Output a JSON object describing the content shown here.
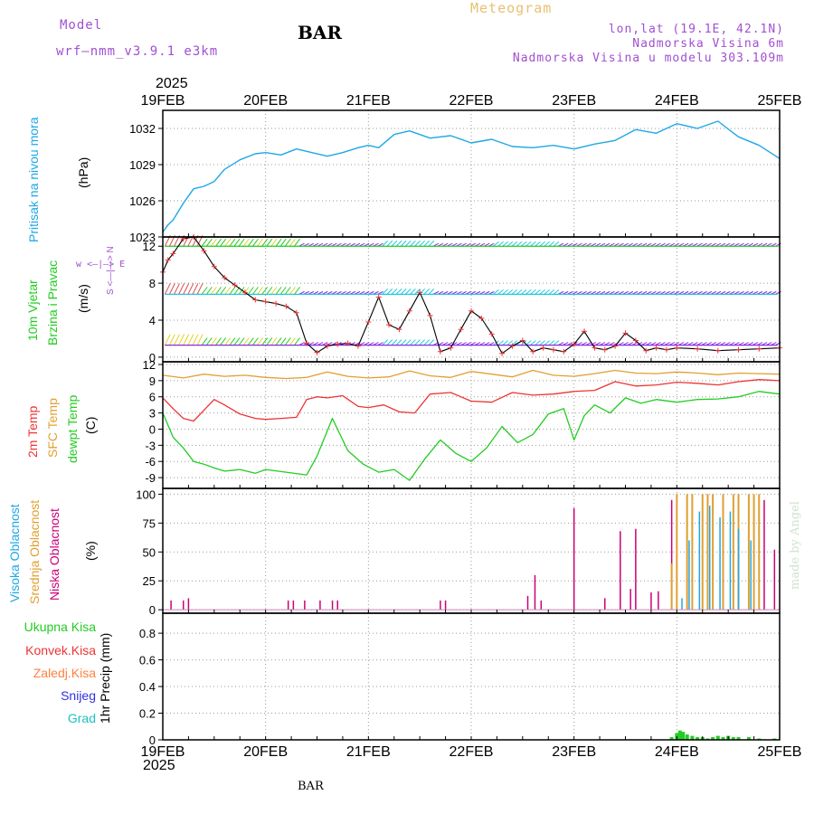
{
  "header": {
    "model_label": "Model",
    "model_name": "wrf—nmm_v3.9.1  e3km",
    "title": "BAR",
    "meteogram": "Meteogram",
    "lonlat": "lon,lat (19.1E, 42.1N)",
    "altitude": "Nadmorska Visina 6m",
    "model_altitude": "Nadmorska Visina u modelu 303.109m",
    "year": "2025",
    "footer_station": "BAR",
    "watermark": "made by Angel"
  },
  "colors": {
    "pressure": "#1ea8e6",
    "wind_green": "#22cc22",
    "wind_cyan": "#22c8e0",
    "wind_purple": "#8a2be2",
    "wind_yellow": "#e8d020",
    "wind_speed": "#ee3333",
    "temp2m": "#ee3333",
    "sfc": "#e0a030",
    "dew": "#22cc22",
    "cloud_high": "#1ea8e6",
    "cloud_mid": "#e0a030",
    "cloud_low": "#cc0077",
    "precip_total": "#22cc22",
    "precip_conv": "#ee3333",
    "precip_frz": "#ff8040",
    "precip_snow": "#3030e0",
    "precip_hail": "#20c0c0"
  },
  "chart_data": [
    {
      "id": "pressure",
      "type": "line",
      "ylabel": "Pritisak na nivou mora",
      "unit": "(hPa)",
      "ylim": [
        1023,
        1033.5
      ],
      "yticks": [
        1023,
        1026,
        1029,
        1032
      ],
      "xlim": [
        0,
        6
      ],
      "x_tick_labels": [
        "19FEB",
        "20FEB",
        "21FEB",
        "22FEB",
        "23FEB",
        "24FEB",
        "25FEB"
      ],
      "x": [
        0,
        0.05,
        0.1,
        0.2,
        0.3,
        0.4,
        0.5,
        0.6,
        0.75,
        0.9,
        1.0,
        1.15,
        1.3,
        1.45,
        1.6,
        1.75,
        1.9,
        2.0,
        2.1,
        2.25,
        2.4,
        2.6,
        2.8,
        3.0,
        3.2,
        3.4,
        3.6,
        3.8,
        4.0,
        4.2,
        4.4,
        4.6,
        4.8,
        5.0,
        5.2,
        5.4,
        5.6,
        5.8,
        6.0
      ],
      "values": [
        1023.4,
        1024.0,
        1024.4,
        1025.8,
        1027.0,
        1027.2,
        1027.6,
        1028.6,
        1029.4,
        1029.9,
        1030.0,
        1029.8,
        1030.3,
        1030.0,
        1029.7,
        1030.0,
        1030.4,
        1030.6,
        1030.4,
        1031.5,
        1031.8,
        1031.2,
        1031.4,
        1030.8,
        1031.1,
        1030.5,
        1030.4,
        1030.6,
        1030.3,
        1030.7,
        1031.0,
        1031.9,
        1031.6,
        1032.4,
        1032.0,
        1032.6,
        1031.3,
        1030.6,
        1029.5
      ]
    },
    {
      "id": "wind",
      "type": "line",
      "ylabel": "10m Vjetar",
      "ylabel2": "Brzina i Pravac",
      "unit": "(m/s)",
      "compass": "w <—|—> E",
      "compass2": "S <—|—> N",
      "ylim": [
        -0.5,
        13
      ],
      "yticks": [
        0,
        4,
        8,
        12
      ],
      "xlim": [
        0,
        6
      ],
      "x": [
        0,
        0.05,
        0.1,
        0.2,
        0.3,
        0.4,
        0.5,
        0.6,
        0.7,
        0.8,
        0.9,
        1.0,
        1.1,
        1.2,
        1.3,
        1.4,
        1.5,
        1.6,
        1.7,
        1.8,
        1.9,
        2.0,
        2.1,
        2.2,
        2.3,
        2.4,
        2.5,
        2.6,
        2.7,
        2.8,
        2.9,
        3.0,
        3.1,
        3.2,
        3.3,
        3.4,
        3.5,
        3.6,
        3.7,
        3.8,
        3.9,
        4.0,
        4.1,
        4.2,
        4.3,
        4.4,
        4.5,
        4.6,
        4.7,
        4.8,
        4.9,
        5.0,
        5.2,
        5.4,
        5.6,
        5.8,
        6.0
      ],
      "values": [
        9.2,
        10.5,
        11.2,
        12.8,
        13.0,
        11.5,
        9.8,
        8.6,
        7.8,
        7.0,
        6.2,
        6.0,
        5.8,
        5.5,
        4.8,
        1.5,
        0.5,
        1.2,
        1.4,
        1.5,
        1.2,
        3.8,
        6.5,
        3.5,
        3.0,
        5.0,
        7.0,
        4.5,
        0.6,
        1.0,
        3.0,
        5.0,
        4.2,
        2.5,
        0.4,
        1.2,
        1.8,
        0.6,
        1.0,
        0.8,
        0.6,
        1.4,
        2.8,
        1.0,
        0.8,
        1.2,
        2.6,
        1.8,
        0.7,
        1.0,
        0.8,
        1.0,
        0.9,
        0.7,
        0.8,
        0.9,
        1.0
      ]
    },
    {
      "id": "temp",
      "type": "line",
      "ylabel": "2m Temp",
      "ylabel2": "SFC Temp",
      "ylabel3": "dewpt Temp",
      "unit": "(C)",
      "ylim": [
        -11,
        12.5
      ],
      "yticks": [
        -9,
        -6,
        -3,
        0,
        3,
        6,
        9,
        12
      ],
      "xlim": [
        0,
        6
      ],
      "series": [
        {
          "name": "2m Temp",
          "x": [
            0,
            0.1,
            0.2,
            0.3,
            0.4,
            0.5,
            0.6,
            0.75,
            0.9,
            1.0,
            1.15,
            1.3,
            1.4,
            1.5,
            1.6,
            1.75,
            1.9,
            2.0,
            2.15,
            2.3,
            2.45,
            2.6,
            2.8,
            3.0,
            3.2,
            3.4,
            3.6,
            3.8,
            4.0,
            4.2,
            4.4,
            4.6,
            4.8,
            5.0,
            5.2,
            5.4,
            5.6,
            5.8,
            6.0
          ],
          "values": [
            5.8,
            3.8,
            2.0,
            1.5,
            3.5,
            5.5,
            4.5,
            2.8,
            2.0,
            1.8,
            2.0,
            2.2,
            5.5,
            6.0,
            5.8,
            6.2,
            4.2,
            4.0,
            4.5,
            3.2,
            3.0,
            6.5,
            6.8,
            5.2,
            5.0,
            6.8,
            6.3,
            6.5,
            7.0,
            7.2,
            8.8,
            8.0,
            8.2,
            8.7,
            8.5,
            8.2,
            8.8,
            9.2,
            9.0
          ]
        },
        {
          "name": "SFC Temp",
          "x": [
            0,
            0.2,
            0.4,
            0.6,
            0.8,
            1.0,
            1.2,
            1.4,
            1.6,
            1.8,
            2.0,
            2.2,
            2.4,
            2.6,
            2.8,
            3.0,
            3.2,
            3.4,
            3.6,
            3.8,
            4.0,
            4.2,
            4.4,
            4.6,
            4.8,
            5.0,
            5.2,
            5.4,
            5.6,
            5.8,
            6.0
          ],
          "values": [
            10.0,
            9.5,
            10.2,
            9.8,
            10.0,
            9.6,
            9.4,
            9.6,
            10.6,
            9.8,
            9.5,
            9.7,
            10.8,
            9.9,
            9.6,
            10.7,
            10.2,
            9.7,
            10.9,
            10.0,
            9.8,
            10.3,
            10.9,
            10.4,
            10.3,
            10.6,
            10.4,
            10.1,
            10.4,
            10.3,
            10.2
          ]
        },
        {
          "name": "dewpt Temp",
          "x": [
            0,
            0.1,
            0.2,
            0.3,
            0.4,
            0.5,
            0.6,
            0.75,
            0.9,
            1.0,
            1.2,
            1.4,
            1.5,
            1.65,
            1.8,
            1.95,
            2.1,
            2.25,
            2.4,
            2.55,
            2.7,
            2.85,
            3.0,
            3.15,
            3.3,
            3.45,
            3.6,
            3.75,
            3.9,
            4.0,
            4.1,
            4.2,
            4.35,
            4.5,
            4.65,
            4.8,
            5.0,
            5.2,
            5.4,
            5.6,
            5.8,
            6.0
          ],
          "values": [
            3.0,
            -1.5,
            -3.5,
            -6.0,
            -6.5,
            -7.2,
            -7.8,
            -7.5,
            -8.2,
            -7.5,
            -8.0,
            -8.5,
            -5.0,
            2.0,
            -4.0,
            -6.5,
            -8.0,
            -7.5,
            -9.5,
            -5.5,
            -2.0,
            -4.5,
            -6.0,
            -3.5,
            0.5,
            -2.5,
            -1.0,
            2.8,
            3.8,
            -2.0,
            2.5,
            4.5,
            3.0,
            5.8,
            4.8,
            5.5,
            5.0,
            5.5,
            5.6,
            6.0,
            7.0,
            6.5
          ]
        }
      ]
    },
    {
      "id": "cloud",
      "type": "bar",
      "ylabel": "Visoka Oblacnost",
      "ylabel2": "Srednja Oblacnost",
      "ylabel3": "Niska Oblacnost",
      "unit": "(%)",
      "ylim": [
        -3,
        105
      ],
      "yticks": [
        0,
        25,
        50,
        75,
        100
      ],
      "xlim": [
        0,
        6
      ],
      "series": [
        {
          "name": "Niska Oblacnost",
          "x": [
            0.08,
            0.2,
            0.25,
            1.22,
            1.27,
            1.38,
            1.53,
            1.65,
            1.7,
            2.7,
            2.75,
            3.55,
            3.62,
            3.68,
            4.0,
            4.3,
            4.45,
            4.55,
            4.6,
            4.75,
            4.82,
            4.95,
            5.1,
            5.3,
            5.6,
            5.85,
            5.95
          ],
          "values": [
            8,
            8,
            10,
            8,
            8,
            8,
            8,
            8,
            8,
            8,
            8,
            12,
            30,
            8,
            88,
            10,
            68,
            18,
            70,
            15,
            16,
            95,
            98,
            100,
            100,
            95,
            52
          ]
        },
        {
          "name": "Srednja Oblacnost",
          "x": [
            4.95,
            5.0,
            5.1,
            5.15,
            5.25,
            5.3,
            5.35,
            5.45,
            5.55,
            5.6,
            5.7,
            5.75,
            5.8
          ],
          "values": [
            40,
            100,
            100,
            100,
            100,
            100,
            100,
            100,
            100,
            100,
            100,
            100,
            100
          ]
        },
        {
          "name": "Visoka Oblacnost",
          "x": [
            5.05,
            5.12,
            5.22,
            5.32,
            5.42,
            5.52,
            5.6,
            5.72
          ],
          "values": [
            10,
            60,
            85,
            90,
            80,
            85,
            70,
            60
          ]
        }
      ]
    },
    {
      "id": "precip",
      "type": "bar",
      "ylabel": "1hr Precip (mm)",
      "legend": [
        "Ukupna  Kisa",
        "Konvek.Kisa",
        "Zaledj.Kisa",
        "Snijeg",
        "Grad"
      ],
      "ylim": [
        0,
        0.95
      ],
      "yticks": [
        0,
        0.2,
        0.4,
        0.6,
        0.8
      ],
      "xlim": [
        0,
        6
      ],
      "x_tick_labels": [
        "19FEB",
        "20FEB",
        "21FEB",
        "22FEB",
        "23FEB",
        "24FEB",
        "25FEB"
      ],
      "series": [
        {
          "name": "Ukupna Kisa",
          "x": [
            4.95,
            5.0,
            5.03,
            5.06,
            5.1,
            5.15,
            5.2,
            5.25,
            5.3,
            5.35,
            5.4,
            5.45,
            5.5,
            5.55,
            5.6,
            5.7,
            5.8,
            5.95
          ],
          "values": [
            0.02,
            0.05,
            0.07,
            0.06,
            0.04,
            0.03,
            0.02,
            0.02,
            0.01,
            0.02,
            0.03,
            0.02,
            0.03,
            0.02,
            0.02,
            0.02,
            0.01,
            0.01
          ]
        }
      ]
    }
  ]
}
